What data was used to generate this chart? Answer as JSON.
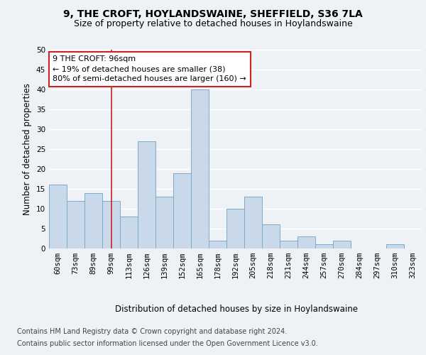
{
  "title1": "9, THE CROFT, HOYLANDSWAINE, SHEFFIELD, S36 7LA",
  "title2": "Size of property relative to detached houses in Hoylandswaine",
  "xlabel": "Distribution of detached houses by size in Hoylandswaine",
  "ylabel": "Number of detached properties",
  "categories": [
    "60sqm",
    "73sqm",
    "89sqm",
    "99sqm",
    "113sqm",
    "126sqm",
    "139sqm",
    "152sqm",
    "165sqm",
    "178sqm",
    "192sqm",
    "205sqm",
    "218sqm",
    "231sqm",
    "244sqm",
    "257sqm",
    "270sqm",
    "284sqm",
    "297sqm",
    "310sqm",
    "323sqm"
  ],
  "values": [
    16,
    12,
    14,
    12,
    8,
    27,
    13,
    19,
    40,
    2,
    10,
    13,
    6,
    2,
    3,
    1,
    2,
    0,
    0,
    1,
    0
  ],
  "bar_color": "#c9d9ea",
  "bar_edge_color": "#7aaac8",
  "annotation_line1": "9 THE CROFT: 96sqm",
  "annotation_line2": "← 19% of detached houses are smaller (38)",
  "annotation_line3": "80% of semi-detached houses are larger (160) →",
  "ylim": [
    0,
    50
  ],
  "yticks": [
    0,
    5,
    10,
    15,
    20,
    25,
    30,
    35,
    40,
    45,
    50
  ],
  "footer1": "Contains HM Land Registry data © Crown copyright and database right 2024.",
  "footer2": "Contains public sector information licensed under the Open Government Licence v3.0.",
  "bg_color": "#eef2f7",
  "plot_bg_color": "#eef2f7",
  "grid_color": "#ffffff",
  "red_line_color": "#cc2222",
  "annotation_box_edge": "#cc2222",
  "title1_fontsize": 10,
  "title2_fontsize": 9,
  "axis_label_fontsize": 8.5,
  "tick_fontsize": 7.5,
  "annotation_fontsize": 8,
  "footer_fontsize": 7,
  "red_line_index": 3
}
